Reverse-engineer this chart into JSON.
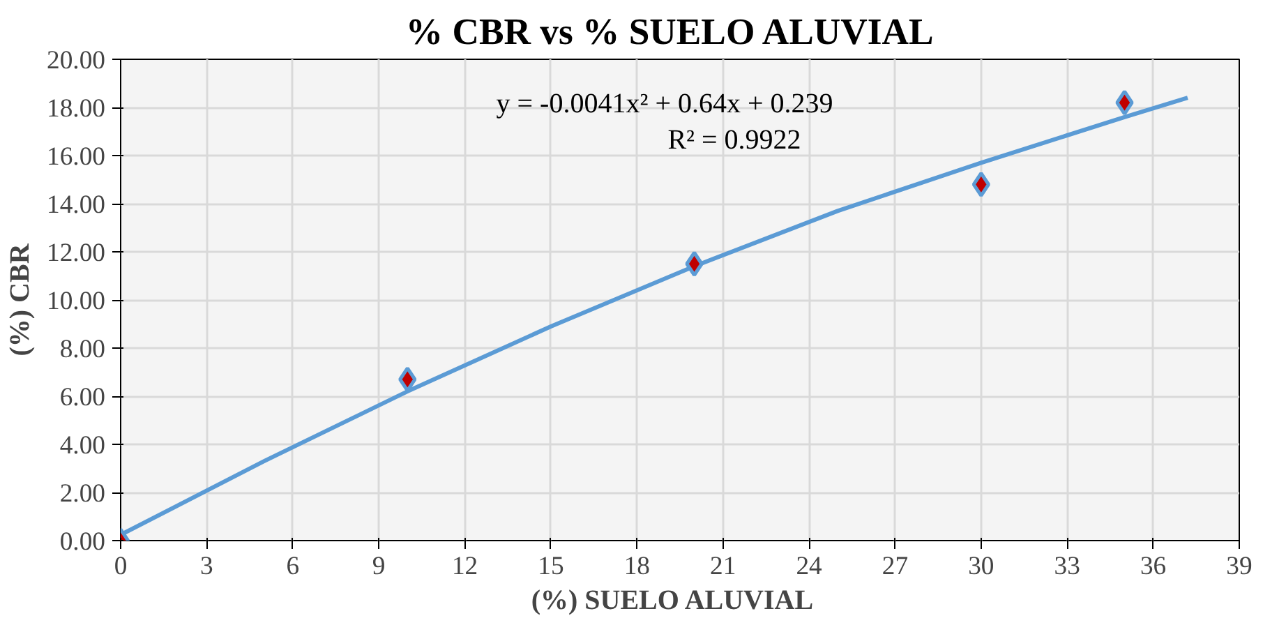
{
  "chart_data": {
    "type": "scatter",
    "title": "% CBR  vs  % SUELO ALUVIAL",
    "xlabel": "(%)   SUELO ALUVIAL",
    "ylabel": "(%) CBR",
    "annotations": [
      "y = -0.0041x² + 0.64x + 0.239",
      "R² = 0.9922"
    ],
    "series": [
      {
        "color": "#c00000",
        "marker": "diamond",
        "x": [
          0,
          10,
          20,
          30,
          35
        ],
        "values": [
          0,
          6.7,
          11.5,
          14.8,
          18.2
        ]
      },
      {
        "type": "line",
        "color": "#5b9bd5",
        "line_style": "solid",
        "x": [
          0,
          5,
          10,
          15,
          20,
          25,
          30,
          35,
          37.2
        ],
        "values": [
          0.24,
          3.3,
          6.2,
          8.9,
          11.4,
          13.7,
          15.7,
          17.6,
          18.4
        ]
      }
    ],
    "xlim": [
      0,
      39
    ],
    "ylim": [
      0,
      20
    ],
    "xticks": [
      0,
      3,
      6,
      9,
      12,
      15,
      18,
      21,
      24,
      27,
      30,
      33,
      36,
      39
    ],
    "yticks": [
      {
        "value": 0,
        "label": "0.00"
      },
      {
        "value": 2,
        "label": "2.00"
      },
      {
        "value": 4,
        "label": "4.00"
      },
      {
        "value": 6,
        "label": "6.00"
      },
      {
        "value": 8,
        "label": "8.00"
      },
      {
        "value": 10,
        "label": "10.00"
      },
      {
        "value": 12,
        "label": "12.00"
      },
      {
        "value": 14,
        "label": "14.00"
      },
      {
        "value": 16,
        "label": "16.00"
      },
      {
        "value": 18,
        "label": "18.00"
      },
      {
        "value": 20,
        "label": "20.00"
      }
    ],
    "grid": true
  }
}
